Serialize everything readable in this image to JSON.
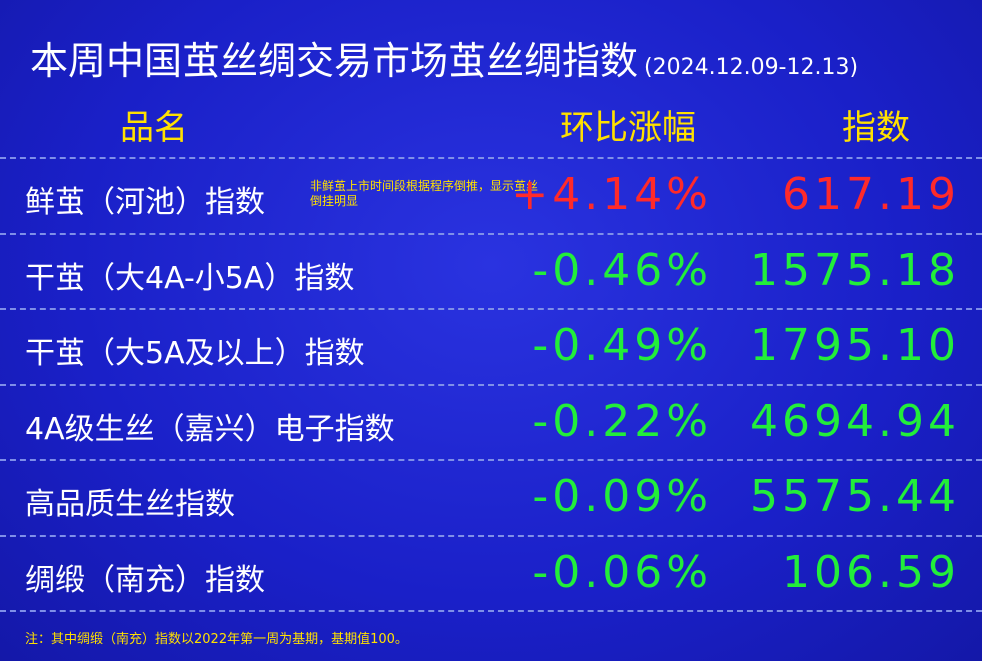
{
  "header": {
    "title": "本周中国茧丝绸交易市场茧丝绸指数",
    "date": "(2024.12.09-12.13)"
  },
  "table": {
    "columns": [
      "品名",
      "环比涨幅",
      "指数"
    ],
    "rows": [
      [
        "鲜茧（河池）指数",
        "+4.14%",
        "617.19"
      ],
      [
        "干茧（大4A-小5A）指数",
        "-0.46%",
        "1575.18"
      ],
      [
        "干茧（大5A及以上）指数",
        "-0.49%",
        "1795.10"
      ],
      [
        "4A级生丝（嘉兴）电子指数",
        "-0.22%",
        "4694.94"
      ],
      [
        "高品质生丝指数",
        "-0.09%",
        "5575.44"
      ],
      [
        "绸缎（南充）指数",
        "-0.06%",
        "106.59"
      ]
    ],
    "row_note": "非鲜茧上市时间段根据程序倒推，显示茧丝倒挂明显"
  },
  "footnote": "注：其中绸缎（南充）指数以2022年第一周为基期，基期值100。"
}
